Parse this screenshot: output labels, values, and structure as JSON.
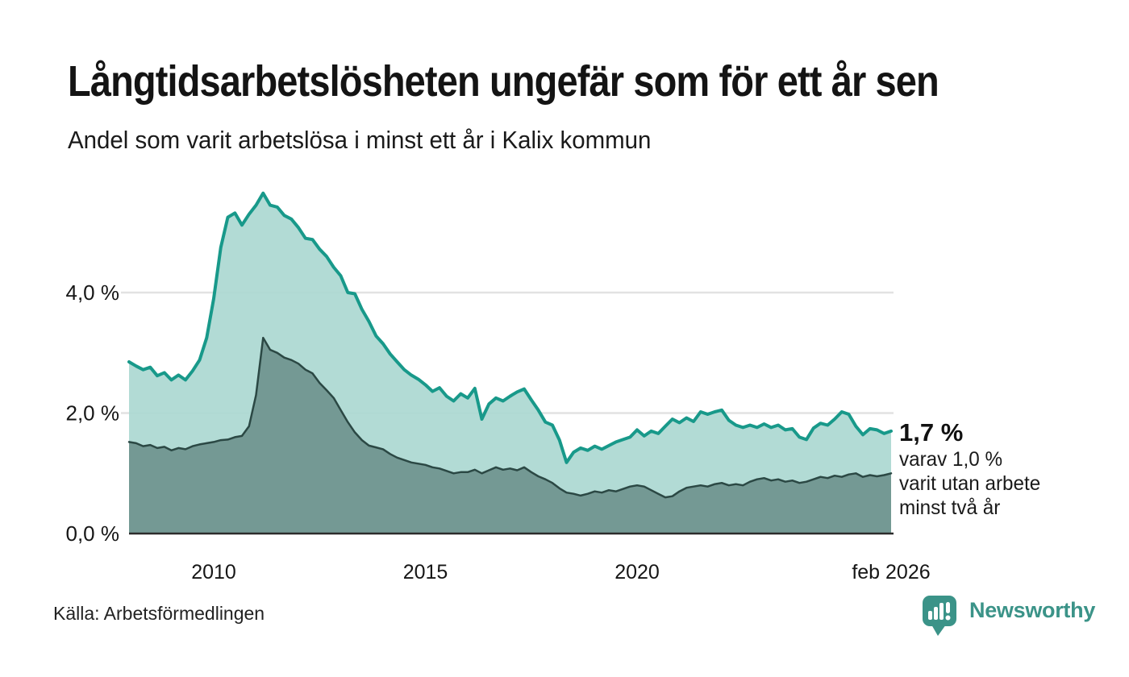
{
  "header": {
    "title": "Långtidsarbetslösheten ungefär som för ett år sen",
    "subtitle": "Andel som varit arbetslösa i minst ett år i Kalix kommun"
  },
  "chart_data": {
    "type": "area",
    "title": "Långtidsarbetslösheten ungefär som för ett år sen",
    "subtitle": "Andel som varit arbetslösa i minst ett år i Kalix kommun",
    "unit": "%",
    "grid": true,
    "legend_position": "none",
    "x_range": [
      2008.083,
      2026.083
    ],
    "x_interval_months": 2,
    "ylim": [
      0,
      5.9
    ],
    "yticks": [
      {
        "value": 0,
        "label": "0,0 %"
      },
      {
        "value": 2,
        "label": "2,0 %"
      },
      {
        "value": 4,
        "label": "4,0 %"
      }
    ],
    "xticks": [
      {
        "value": 2010.083,
        "label": "2010"
      },
      {
        "value": 2015.083,
        "label": "2015"
      },
      {
        "value": 2020.083,
        "label": "2020"
      },
      {
        "value": 2026.083,
        "label": "feb 2026"
      }
    ],
    "series": [
      {
        "name": "Arbetslösa minst ett år",
        "color": "#18998a",
        "fill": "#abd8d1",
        "last_value_label": "1,7 %",
        "values": [
          2.85,
          2.78,
          2.72,
          2.76,
          2.62,
          2.67,
          2.55,
          2.63,
          2.55,
          2.7,
          2.88,
          3.25,
          3.9,
          4.75,
          5.25,
          5.32,
          5.12,
          5.3,
          5.45,
          5.65,
          5.45,
          5.42,
          5.28,
          5.22,
          5.08,
          4.9,
          4.88,
          4.72,
          4.6,
          4.42,
          4.28,
          4.0,
          3.98,
          3.72,
          3.52,
          3.28,
          3.15,
          2.98,
          2.85,
          2.72,
          2.63,
          2.56,
          2.47,
          2.36,
          2.42,
          2.28,
          2.2,
          2.32,
          2.25,
          2.41,
          1.9,
          2.15,
          2.25,
          2.2,
          2.28,
          2.35,
          2.4,
          2.22,
          2.05,
          1.85,
          1.8,
          1.55,
          1.18,
          1.35,
          1.42,
          1.38,
          1.45,
          1.4,
          1.46,
          1.52,
          1.56,
          1.6,
          1.72,
          1.62,
          1.7,
          1.66,
          1.78,
          1.9,
          1.84,
          1.92,
          1.86,
          2.02,
          1.98,
          2.02,
          2.05,
          1.88,
          1.8,
          1.76,
          1.8,
          1.76,
          1.82,
          1.76,
          1.8,
          1.72,
          1.74,
          1.6,
          1.56,
          1.75,
          1.83,
          1.8,
          1.9,
          2.02,
          1.98,
          1.78,
          1.64,
          1.74,
          1.72,
          1.66,
          1.7
        ]
      },
      {
        "name": "Utan arbete minst två år",
        "color": "#2b4844",
        "fill": "#6f948e",
        "last_value_label": "1,0 %",
        "values": [
          1.52,
          1.5,
          1.45,
          1.47,
          1.42,
          1.44,
          1.38,
          1.42,
          1.4,
          1.45,
          1.48,
          1.5,
          1.52,
          1.55,
          1.56,
          1.6,
          1.62,
          1.78,
          2.3,
          3.25,
          3.05,
          3.0,
          2.92,
          2.88,
          2.82,
          2.72,
          2.66,
          2.5,
          2.38,
          2.25,
          2.05,
          1.85,
          1.68,
          1.55,
          1.46,
          1.43,
          1.4,
          1.32,
          1.26,
          1.22,
          1.18,
          1.16,
          1.14,
          1.1,
          1.08,
          1.04,
          1.0,
          1.02,
          1.02,
          1.06,
          1.0,
          1.05,
          1.1,
          1.06,
          1.08,
          1.05,
          1.1,
          1.02,
          0.95,
          0.9,
          0.84,
          0.75,
          0.68,
          0.66,
          0.63,
          0.66,
          0.7,
          0.68,
          0.72,
          0.7,
          0.74,
          0.78,
          0.8,
          0.78,
          0.72,
          0.66,
          0.6,
          0.62,
          0.7,
          0.76,
          0.78,
          0.8,
          0.78,
          0.82,
          0.84,
          0.8,
          0.82,
          0.8,
          0.86,
          0.9,
          0.92,
          0.88,
          0.9,
          0.86,
          0.88,
          0.84,
          0.86,
          0.9,
          0.94,
          0.92,
          0.96,
          0.94,
          0.98,
          1.0,
          0.94,
          0.97,
          0.95,
          0.97,
          1.0
        ]
      }
    ]
  },
  "annotation": {
    "value": "1,7 %",
    "detail_line1": "varav 1,0 %",
    "detail_line2": "varit utan arbete",
    "detail_line3": "minst två år"
  },
  "footer": {
    "source": "Källa: Arbetsförmedlingen",
    "brand": "Newsworthy",
    "brand_color": "#3b9388"
  }
}
